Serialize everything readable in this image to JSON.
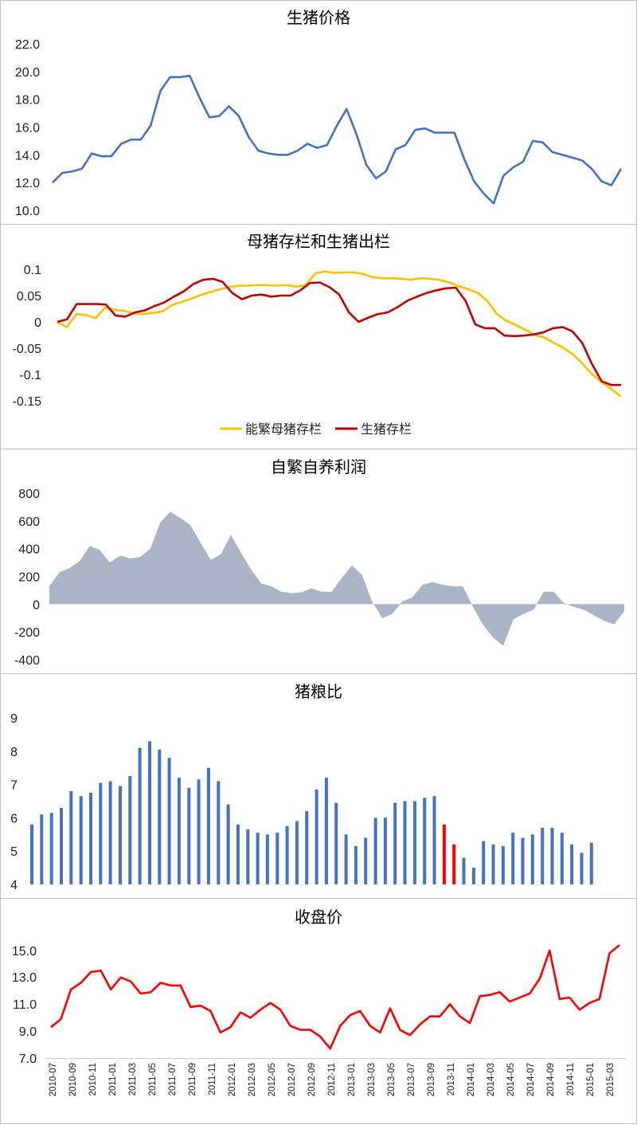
{
  "colors": {
    "blue": "#4472c4",
    "yellow": "#ffc000",
    "darkred": "#c00000",
    "red": "#ff0000",
    "area": "#a9b4c6",
    "border": "#bfbfbf"
  },
  "chart_data": [
    {
      "type": "line",
      "title": "生猪价格",
      "ylim": [
        10,
        22
      ],
      "yticks": [
        "10.0",
        "12.0",
        "14.0",
        "16.0",
        "18.0",
        "20.0",
        "22.0"
      ],
      "series": [
        {
          "color": "#4472c4",
          "values": [
            12.0,
            12.7,
            12.8,
            13.0,
            14.1,
            13.9,
            13.9,
            14.8,
            15.1,
            15.1,
            16.1,
            18.6,
            19.6,
            19.6,
            19.7,
            18.1,
            16.7,
            16.8,
            17.5,
            16.8,
            15.3,
            14.3,
            14.1,
            14.0,
            14.0,
            14.3,
            14.8,
            14.5,
            14.7,
            16.1,
            17.3,
            15.5,
            13.3,
            12.3,
            12.8,
            14.4,
            14.7,
            15.8,
            15.9,
            15.6,
            15.6,
            15.6,
            13.7,
            12.1,
            11.2,
            10.5,
            12.5,
            13.1,
            13.5,
            15.0,
            14.9,
            14.2,
            14.0,
            13.8,
            13.6,
            13.0,
            12.1,
            11.8,
            13.0
          ]
        }
      ]
    },
    {
      "type": "line",
      "title": "母猪存栏和生猪出栏",
      "ylim": [
        -0.175,
        0.12
      ],
      "yticks": [
        "0.1",
        "0.05",
        "0",
        "-0.05",
        "-0.1",
        "-0.15"
      ],
      "legend": "bottom",
      "series": [
        {
          "name": "能繁母猪存栏",
          "color": "#ffc000",
          "values": [
            0.0,
            -0.01,
            0.015,
            0.013,
            0.007,
            0.027,
            0.023,
            0.021,
            0.016,
            0.015,
            0.017,
            0.02,
            0.032,
            0.038,
            0.044,
            0.051,
            0.057,
            0.062,
            0.066,
            0.069,
            0.069,
            0.07,
            0.07,
            0.069,
            0.07,
            0.067,
            0.07,
            0.092,
            0.096,
            0.093,
            0.094,
            0.094,
            0.091,
            0.085,
            0.083,
            0.083,
            0.082,
            0.08,
            0.083,
            0.082,
            0.08,
            0.075,
            0.068,
            0.062,
            0.055,
            0.04,
            0.015,
            0.002,
            -0.006,
            -0.015,
            -0.025,
            -0.03,
            -0.04,
            -0.05,
            -0.062,
            -0.08,
            -0.1,
            -0.115,
            -0.128,
            -0.142
          ]
        },
        {
          "name": "生猪存栏",
          "color": "#c00000",
          "values": [
            0.0,
            0.005,
            0.034,
            0.034,
            0.034,
            0.033,
            0.012,
            0.01,
            0.018,
            0.022,
            0.03,
            0.037,
            0.048,
            0.058,
            0.072,
            0.08,
            0.082,
            0.076,
            0.055,
            0.043,
            0.05,
            0.052,
            0.048,
            0.05,
            0.05,
            0.06,
            0.074,
            0.075,
            0.066,
            0.052,
            0.018,
            0.0,
            0.008,
            0.015,
            0.018,
            0.028,
            0.04,
            0.048,
            0.055,
            0.06,
            0.064,
            0.065,
            0.04,
            -0.005,
            -0.012,
            -0.012,
            -0.026,
            -0.027,
            -0.026,
            -0.024,
            -0.02,
            -0.012,
            -0.01,
            -0.018,
            -0.04,
            -0.08,
            -0.113,
            -0.12,
            -0.12
          ]
        }
      ]
    },
    {
      "type": "area",
      "title": "自繁自养利润",
      "ylim": [
        -400,
        800
      ],
      "yticks": [
        "800",
        "600",
        "400",
        "200",
        "0",
        "-200",
        "-400"
      ],
      "series": [
        {
          "color": "#a9b4c6",
          "values": [
            130,
            230,
            260,
            310,
            420,
            390,
            300,
            350,
            330,
            340,
            400,
            590,
            665,
            620,
            570,
            440,
            320,
            360,
            500,
            370,
            250,
            150,
            130,
            90,
            80,
            85,
            115,
            90,
            90,
            190,
            280,
            210,
            20,
            -100,
            -70,
            20,
            50,
            140,
            160,
            140,
            130,
            130,
            -20,
            -150,
            -240,
            -300,
            -110,
            -70,
            -40,
            90,
            90,
            10,
            -20,
            -40,
            -80,
            -120,
            -145,
            -50
          ]
        }
      ]
    },
    {
      "type": "bar",
      "title": "猪粮比",
      "ylim": [
        4,
        9
      ],
      "yticks": [
        "9",
        "8",
        "7",
        "6",
        "5",
        "4"
      ],
      "highlight_indices": [
        42,
        43
      ],
      "highlight_color": "#ff0000",
      "series": [
        {
          "color": "#4472c4",
          "values": [
            5.8,
            6.1,
            6.15,
            6.3,
            6.8,
            6.65,
            6.75,
            7.05,
            7.1,
            6.95,
            7.25,
            8.1,
            8.3,
            8.05,
            7.8,
            7.2,
            6.9,
            7.15,
            7.5,
            7.1,
            6.4,
            5.8,
            5.65,
            5.55,
            5.5,
            5.55,
            5.75,
            5.9,
            6.2,
            6.85,
            7.2,
            6.45,
            5.5,
            5.15,
            5.4,
            6.0,
            6.0,
            6.45,
            6.5,
            6.5,
            6.6,
            6.65,
            5.8,
            5.2,
            4.8,
            4.5,
            5.3,
            5.2,
            5.15,
            5.55,
            5.4,
            5.5,
            5.7,
            5.7,
            5.55,
            5.2,
            4.95,
            5.25
          ]
        }
      ]
    },
    {
      "type": "line",
      "title": "收盘价",
      "ylim": [
        7,
        16.2
      ],
      "yticks": [
        "15.0",
        "13.0",
        "11.0",
        "9.0",
        "7.0"
      ],
      "xticks": [
        "2010-07",
        "2010-09",
        "2010-11",
        "2011-01",
        "2011-03",
        "2011-05",
        "2011-07",
        "2011-09",
        "2011-11",
        "2012-01",
        "2012-03",
        "2012-05",
        "2012-07",
        "2012-09",
        "2012-11",
        "2013-01",
        "2013-03",
        "2013-05",
        "2013-07",
        "2013-09",
        "2013-11",
        "2014-01",
        "2014-03",
        "2014-05",
        "2014-07",
        "2014-09",
        "2014-11",
        "2015-01",
        "2015-03"
      ],
      "series": [
        {
          "color": "#ff0000",
          "values": [
            9.3,
            9.9,
            12.1,
            12.6,
            13.4,
            13.5,
            12.1,
            13.0,
            12.7,
            11.8,
            11.9,
            12.6,
            12.4,
            12.4,
            10.8,
            10.9,
            10.5,
            8.9,
            9.3,
            10.4,
            10.0,
            10.6,
            11.1,
            10.6,
            9.4,
            9.1,
            9.1,
            8.6,
            7.7,
            9.4,
            10.2,
            10.5,
            9.4,
            8.9,
            10.7,
            9.1,
            8.7,
            9.5,
            10.1,
            10.1,
            11.0,
            10.1,
            9.6,
            11.6,
            11.7,
            11.9,
            11.2,
            11.5,
            11.8,
            12.9,
            15.0,
            11.4,
            11.5,
            10.6,
            11.1,
            11.4,
            14.8,
            15.4
          ]
        }
      ]
    }
  ]
}
